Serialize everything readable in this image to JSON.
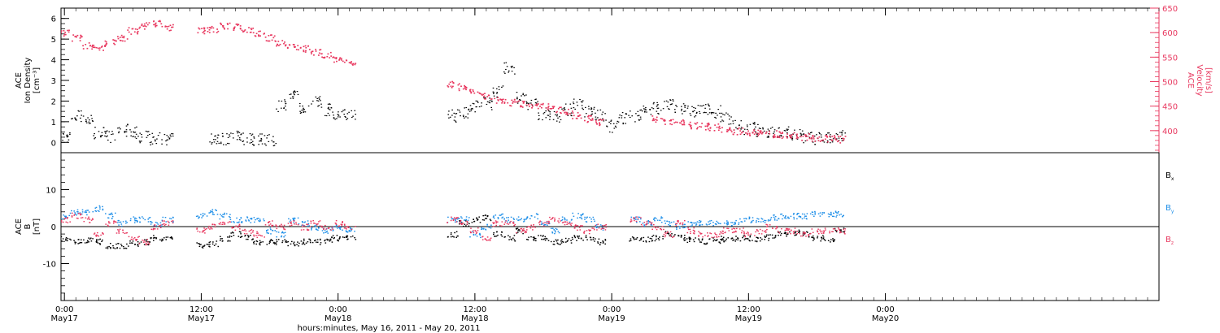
{
  "figure": {
    "xlabel": "hours:minutes, May 16, 2011 - May 20, 2011"
  },
  "chart_data": [
    {
      "type": "scatter",
      "panel": "ion-density-velocity",
      "ylabel": "ACE\nIon Density\n[cm⁻³]",
      "y2label": "ACE\nVelocity\n[km/s]",
      "x_unit": "hours since May 16, 2011 24:00",
      "xlim": [
        -0.3,
        96
      ],
      "ylim": [
        -0.5,
        6.5
      ],
      "y2lim": [
        355,
        650
      ],
      "yticks": [
        0,
        1,
        2,
        3,
        4,
        5,
        6
      ],
      "y2ticks": [
        400,
        450,
        500,
        550,
        600,
        650
      ],
      "xticks": [
        {
          "x": 0,
          "time": "0:00",
          "date": "May17"
        },
        {
          "x": 12,
          "time": "12:00",
          "date": "May17"
        },
        {
          "x": 24,
          "time": "0:00",
          "date": "May18"
        },
        {
          "x": 36,
          "time": "12:00",
          "date": "May18"
        },
        {
          "x": 48,
          "time": "0:00",
          "date": "May19"
        },
        {
          "x": 60,
          "time": "12:00",
          "date": "May19"
        },
        {
          "x": 72,
          "time": "0:00",
          "date": "May20"
        }
      ],
      "series": [
        {
          "color": "#000000",
          "axis": "left",
          "x": [
            0,
            1,
            2,
            3,
            4,
            5,
            6,
            7,
            8,
            9,
            10,
            11,
            12,
            13,
            14,
            15,
            16,
            17,
            18,
            19,
            20,
            21,
            22,
            23,
            24,
            25,
            26,
            27,
            28,
            29,
            30,
            31,
            32,
            33,
            34,
            35,
            36,
            37,
            38,
            39,
            40,
            41,
            42,
            43,
            44,
            45,
            46,
            47,
            48,
            49,
            50,
            51,
            52,
            53,
            54,
            55,
            56,
            57,
            58,
            59,
            60,
            61,
            62,
            63,
            64,
            65,
            66,
            67,
            68,
            69,
            70,
            71,
            72
          ],
          "y": [
            0.3,
            1.3,
            1.1,
            0.5,
            0.3,
            0.6,
            0.5,
            0.3,
            0.2,
            0.15,
            null,
            null,
            null,
            0.2,
            0.2,
            0.4,
            0.2,
            0.15,
            0.15,
            1.8,
            2.3,
            1.7,
            2.0,
            1.6,
            1.3,
            1.4,
            null,
            null,
            null,
            null,
            null,
            null,
            null,
            null,
            1.3,
            1.5,
            1.8,
            1.9,
            2.5,
            3.6,
            2.2,
            1.9,
            1.4,
            1.3,
            1.6,
            1.9,
            1.5,
            1.3,
            0.8,
            1.2,
            1.3,
            1.6,
            1.7,
            1.8,
            1.7,
            1.5,
            1.6,
            1.5,
            1.2,
            0.8,
            0.7,
            0.6,
            0.5,
            0.5,
            0.4,
            0.3,
            0.2,
            0.2,
            0.3,
            null,
            null,
            null,
            null
          ]
        },
        {
          "color": "#e8385f",
          "axis": "right",
          "x": [
            0,
            1,
            2,
            3,
            4,
            5,
            6,
            7,
            8,
            9,
            10,
            11,
            12,
            13,
            14,
            15,
            16,
            17,
            18,
            19,
            20,
            21,
            22,
            23,
            24,
            25,
            26,
            27,
            28,
            29,
            30,
            31,
            32,
            33,
            34,
            35,
            36,
            37,
            38,
            39,
            40,
            41,
            42,
            43,
            44,
            45,
            46,
            47,
            48,
            49,
            50,
            51,
            52,
            53,
            54,
            55,
            56,
            57,
            58,
            59,
            60,
            61,
            62,
            63,
            64,
            65,
            66,
            67,
            68,
            69,
            70,
            71,
            72
          ],
          "y": [
            600,
            590,
            575,
            570,
            580,
            590,
            605,
            615,
            620,
            612,
            null,
            null,
            605,
            608,
            615,
            612,
            608,
            600,
            590,
            580,
            572,
            568,
            560,
            555,
            548,
            540,
            null,
            null,
            null,
            null,
            null,
            null,
            null,
            null,
            495,
            490,
            480,
            470,
            462,
            458,
            455,
            452,
            450,
            445,
            440,
            432,
            425,
            418,
            null,
            null,
            null,
            null,
            425,
            420,
            418,
            412,
            410,
            408,
            405,
            400,
            398,
            396,
            394,
            392,
            390,
            388,
            386,
            385,
            383,
            null,
            null,
            null,
            null
          ]
        }
      ]
    },
    {
      "type": "scatter",
      "panel": "imf-components",
      "ylabel": "ACE\nB\n[nT]",
      "x_unit": "hours since May 16, 2011 24:00",
      "xlim": [
        -0.3,
        96
      ],
      "ylim": [
        -20,
        20
      ],
      "yticks": [
        -10,
        0,
        10
      ],
      "zero_line": true,
      "legend_position": "right",
      "series": [
        {
          "name": "Bx",
          "color": "#000000",
          "x": [
            0,
            1,
            2,
            3,
            4,
            5,
            6,
            7,
            8,
            9,
            10,
            11,
            12,
            13,
            14,
            15,
            16,
            17,
            18,
            19,
            20,
            21,
            22,
            23,
            24,
            25,
            26,
            27,
            28,
            29,
            30,
            31,
            32,
            33,
            34,
            35,
            36,
            37,
            38,
            39,
            40,
            41,
            42,
            43,
            44,
            45,
            46,
            47,
            48,
            49,
            50,
            51,
            52,
            53,
            54,
            55,
            56,
            57,
            58,
            59,
            60,
            61,
            62,
            63,
            64,
            65,
            66,
            67,
            68,
            69,
            70,
            71,
            72
          ],
          "y": [
            -3,
            -4,
            -3.5,
            -4,
            -5,
            -5,
            -4.5,
            -4,
            -3,
            -3,
            null,
            null,
            -5,
            -4.5,
            -3,
            -2,
            -3,
            -4,
            -4,
            -4,
            -4.5,
            -4,
            -4,
            -3.5,
            -3,
            -3,
            null,
            null,
            null,
            null,
            null,
            null,
            null,
            null,
            -2,
            1,
            2,
            2.5,
            -2,
            -3,
            -1,
            -3,
            -3,
            -4,
            -3.5,
            -3,
            -3,
            -4,
            null,
            null,
            -3,
            -3.5,
            -3,
            -2,
            -3,
            -3.5,
            -3.8,
            -3.6,
            -3.3,
            -3,
            -3,
            -3.2,
            -2.8,
            -2,
            -1.5,
            -2,
            -3,
            -3.5,
            -1,
            null,
            null,
            null,
            null
          ]
        },
        {
          "name": "By",
          "color": "#1f8fe8",
          "x": [
            0,
            1,
            2,
            3,
            4,
            5,
            6,
            7,
            8,
            9,
            10,
            11,
            12,
            13,
            14,
            15,
            16,
            17,
            18,
            19,
            20,
            21,
            22,
            23,
            24,
            25,
            26,
            27,
            28,
            29,
            30,
            31,
            32,
            33,
            34,
            35,
            36,
            37,
            38,
            39,
            40,
            41,
            42,
            43,
            44,
            45,
            46,
            47,
            48,
            49,
            50,
            51,
            52,
            53,
            54,
            55,
            56,
            57,
            58,
            59,
            60,
            61,
            62,
            63,
            64,
            65,
            66,
            67,
            68,
            69,
            70,
            71,
            72
          ],
          "y": [
            3,
            4,
            4,
            5,
            3,
            1,
            2,
            2,
            1,
            2,
            null,
            null,
            3,
            4,
            3,
            2,
            2,
            2,
            -1,
            -2,
            2,
            1,
            0,
            -1,
            0,
            -1,
            null,
            null,
            null,
            null,
            null,
            null,
            null,
            null,
            2,
            2,
            -2,
            0,
            3,
            2,
            2,
            3,
            1,
            -1,
            2,
            3,
            2,
            0,
            null,
            null,
            2,
            1,
            2,
            1,
            0,
            1,
            1,
            1,
            1,
            1.5,
            2,
            2,
            2.5,
            3,
            3,
            3,
            3.5,
            3.5,
            3.5,
            null,
            null,
            null,
            null
          ]
        },
        {
          "name": "Bz",
          "color": "#e8385f",
          "x": [
            0,
            1,
            2,
            3,
            4,
            5,
            6,
            7,
            8,
            9,
            10,
            11,
            12,
            13,
            14,
            15,
            16,
            17,
            18,
            19,
            20,
            21,
            22,
            23,
            24,
            25,
            26,
            27,
            28,
            29,
            30,
            31,
            32,
            33,
            34,
            35,
            36,
            37,
            38,
            39,
            40,
            41,
            42,
            43,
            44,
            45,
            46,
            47,
            48,
            49,
            50,
            51,
            52,
            53,
            54,
            55,
            56,
            57,
            58,
            59,
            60,
            61,
            62,
            63,
            64,
            65,
            66,
            67,
            68,
            69,
            70,
            71,
            72
          ],
          "y": [
            2,
            3,
            2,
            -2,
            1,
            -1,
            -3,
            -4,
            0,
            1,
            null,
            null,
            -1,
            0,
            1,
            0,
            -1,
            -2,
            1,
            0,
            1,
            0,
            1,
            0,
            1,
            0,
            null,
            null,
            null,
            null,
            null,
            null,
            null,
            null,
            2,
            1,
            -1,
            -3,
            1,
            1,
            -1,
            0,
            1,
            2,
            1,
            0,
            -1,
            0,
            null,
            null,
            2,
            1,
            0,
            -2,
            1,
            -1,
            -2,
            -2,
            -1,
            -1,
            -2,
            -1,
            0,
            -1,
            -1,
            -2,
            -1,
            -1,
            -1,
            null,
            null,
            null,
            null
          ]
        }
      ]
    }
  ]
}
